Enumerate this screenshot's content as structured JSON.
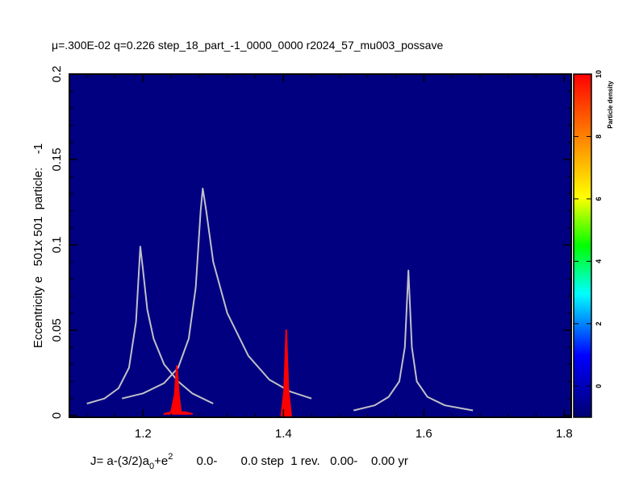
{
  "chart_data": {
    "type": "line",
    "title": "μ=.300E-02 q=0.226 step_18_part_-1_0000_0000   r2024_57_mu003_possave",
    "title_parts": {
      "mu_symbol": "μ",
      "rest": "=.300E-02 q=0.226 step_18_part_-1_0000_0000   r2024_57_mu003_possave"
    },
    "xlabel": "J= a-(3/2)a0+e2       0.0-       0.0 step  1 rev.   0.00-    0.00 yr",
    "xlabel_parts": {
      "j": "J= a-(3/2)a",
      "sub": "0",
      "plus_e": "+e",
      "sup": "2",
      "rest": "       0.0-       0.0 step  1 rev.   0.00-    0.00 yr"
    },
    "ylabel": "Eccentricity e   501x 501  particle:    -1",
    "xlim": [
      1.095,
      1.81
    ],
    "ylim": [
      -0.001,
      0.2
    ],
    "xticks": [
      1.2,
      1.4,
      1.6,
      1.8
    ],
    "xtick_labels": [
      "1.2",
      "1.4",
      "1.6",
      "1.8"
    ],
    "yticks": [
      0,
      0.05,
      0.1,
      0.15,
      0.2
    ],
    "ytick_labels": [
      "0",
      "0.05",
      "0.1",
      "0.15",
      "0.2"
    ],
    "plot_background": "#000080",
    "grid": false,
    "colorbar": {
      "label": "Particle density",
      "range": [
        -1,
        10
      ],
      "ticks": [
        0,
        2,
        4,
        6,
        8,
        10
      ],
      "tick_labels": [
        "0",
        "2",
        "4",
        "6",
        "8",
        "10"
      ],
      "colors": [
        "#000070",
        "#0000ff",
        "#00ffff",
        "#00ff00",
        "#ffff00",
        "#ff8000",
        "#ff0000"
      ]
    },
    "series": [
      {
        "color": "#c0c0c8",
        "x": [
          1.12,
          1.145,
          1.165,
          1.18,
          1.19,
          1.196,
          1.2,
          1.206,
          1.215,
          1.23,
          1.25,
          1.27,
          1.29,
          1.3
        ],
        "y": [
          0.007,
          0.01,
          0.016,
          0.028,
          0.055,
          0.099,
          0.085,
          0.062,
          0.045,
          0.03,
          0.02,
          0.013,
          0.009,
          0.007
        ]
      },
      {
        "color": "#c0c0c8",
        "x": [
          1.17,
          1.2,
          1.23,
          1.25,
          1.265,
          1.275,
          1.282,
          1.285,
          1.29,
          1.3,
          1.32,
          1.35,
          1.38,
          1.41,
          1.44
        ],
        "y": [
          0.01,
          0.013,
          0.019,
          0.028,
          0.045,
          0.075,
          0.12,
          0.133,
          0.12,
          0.09,
          0.06,
          0.035,
          0.021,
          0.014,
          0.01
        ]
      },
      {
        "color": "#c0c0c8",
        "x": [
          1.5,
          1.53,
          1.55,
          1.565,
          1.573,
          1.578,
          1.583,
          1.59,
          1.605,
          1.63,
          1.67
        ],
        "y": [
          0.003,
          0.006,
          0.011,
          0.02,
          0.04,
          0.085,
          0.04,
          0.02,
          0.011,
          0.006,
          0.003
        ]
      }
    ],
    "density_marks": [
      {
        "color": "#ff0000",
        "x": [
          1.23,
          1.24,
          1.245,
          1.248,
          1.251,
          1.254,
          1.26,
          1.27
        ],
        "y": [
          0.001,
          0.002,
          0.012,
          0.029,
          0.012,
          0.002,
          0.002,
          0.001
        ]
      },
      {
        "color": "#ff0000",
        "x": [
          1.397,
          1.401,
          1.404,
          1.407,
          1.411
        ],
        "y": [
          0.0,
          0.015,
          0.05,
          0.015,
          0.0
        ]
      }
    ]
  }
}
